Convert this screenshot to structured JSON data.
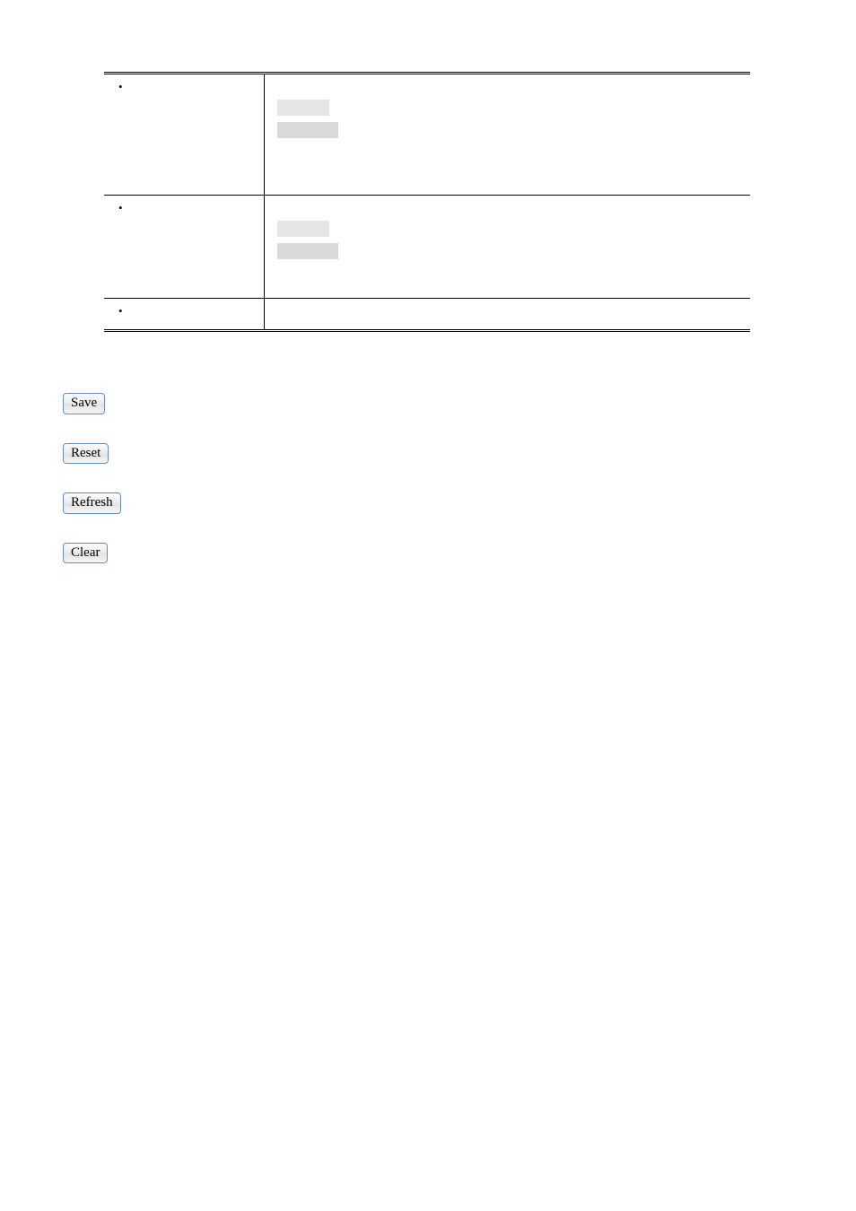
{
  "table": {
    "border_color": "#000000",
    "placeholder_colors": {
      "light": "#e6e6e6",
      "dark": "#d9d9d9"
    },
    "rows": [
      {
        "left_label": "",
        "right_text": "",
        "has_placeholders": true
      },
      {
        "left_label": "",
        "right_text": "",
        "has_placeholders": true
      },
      {
        "left_label": "",
        "right_text": "",
        "has_placeholders": false
      }
    ]
  },
  "buttons": {
    "save": "Save",
    "reset": "Reset",
    "refresh": "Refresh",
    "clear": "Clear"
  },
  "button_style": {
    "border_color": "#6a8db8",
    "bg_top": "#fdfdfd",
    "bg_bottom": "#f6f6f6",
    "font_family": "Times New Roman"
  }
}
